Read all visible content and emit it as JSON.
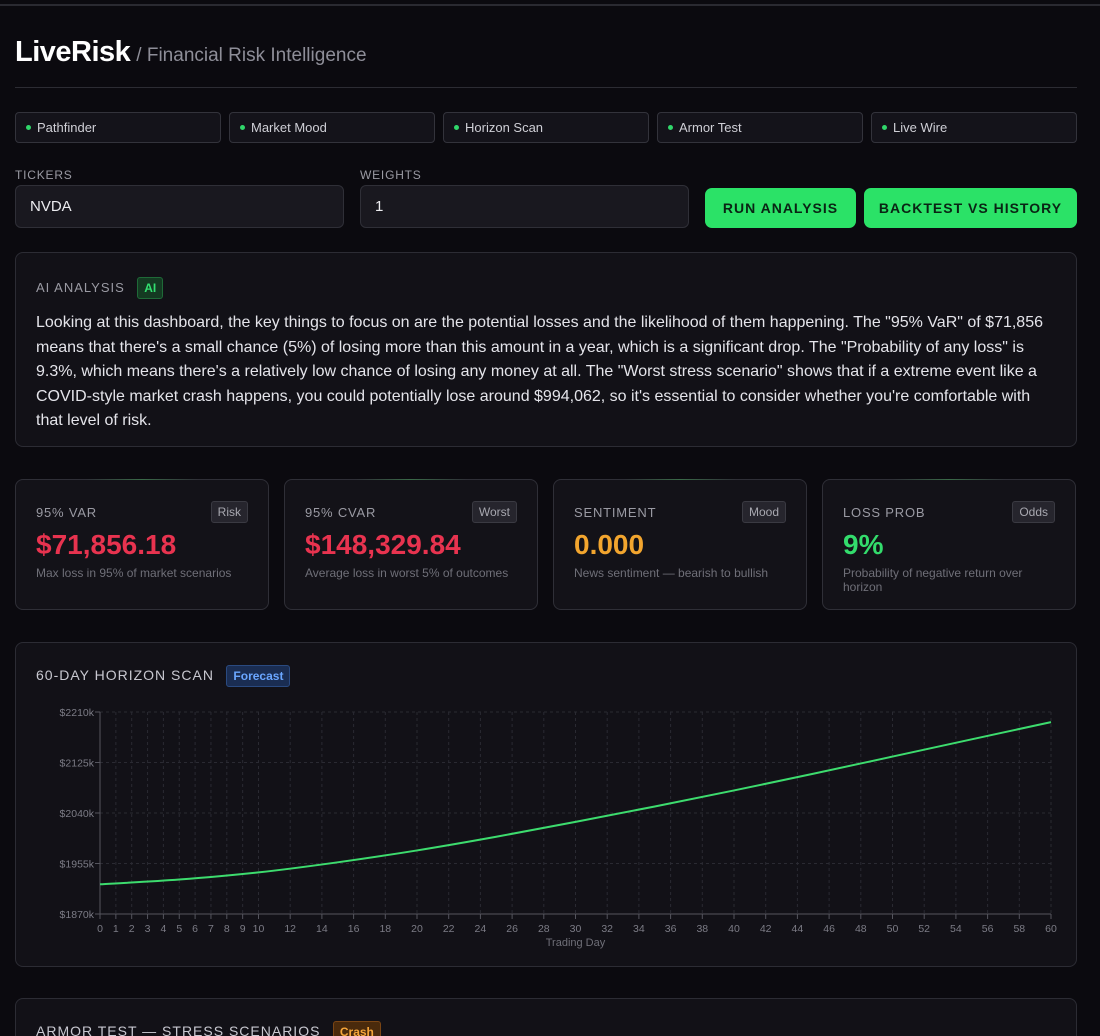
{
  "header": {
    "brand": "LiveRisk",
    "subtitle": "/ Financial Risk Intelligence"
  },
  "tabs": [
    {
      "label": "Pathfinder"
    },
    {
      "label": "Market Mood"
    },
    {
      "label": "Horizon Scan"
    },
    {
      "label": "Armor Test"
    },
    {
      "label": "Live Wire"
    }
  ],
  "form": {
    "tickers_label": "TICKERS",
    "tickers_value": "NVDA",
    "weights_label": "WEIGHTS",
    "weights_value": "1",
    "run_label": "RUN ANALYSIS",
    "backtest_label": "BACKTEST VS HISTORY"
  },
  "ai": {
    "title": "AI ANALYSIS",
    "badge": "AI",
    "text": "Looking at this dashboard, the key things to focus on are the potential losses and the likelihood of them happening. The \"95% VaR\" of $71,856 means that there's a small chance (5%) of losing more than this amount in a year, which is a significant drop. The \"Probability of any loss\" is 9.3%, which means there's a relatively low chance of losing any money at all. The \"Worst stress scenario\" shows that if a extreme event like a COVID-style market crash happens, you could potentially lose around $994,062, so it's essential to consider whether you're comfortable with that level of risk."
  },
  "cards": [
    {
      "label": "95% VAR",
      "tag": "Risk",
      "value": "$71,856.18",
      "desc": "Max loss in 95% of market scenarios",
      "color": "#e8334f"
    },
    {
      "label": "95% CVAR",
      "tag": "Worst",
      "value": "$148,329.84",
      "desc": "Average loss in worst 5% of outcomes",
      "color": "#e8334f"
    },
    {
      "label": "SENTIMENT",
      "tag": "Mood",
      "value": "0.000",
      "desc": "News sentiment — bearish to bullish",
      "color": "#f2a52e"
    },
    {
      "label": "LOSS PROB",
      "tag": "Odds",
      "value": "9%",
      "desc": "Probability of negative return over horizon",
      "color": "#33dc6c"
    }
  ],
  "horizon": {
    "title": "60-DAY HORIZON SCAN",
    "badge": "Forecast"
  },
  "chart_data": {
    "type": "line",
    "xlabel": "Trading Day",
    "ylabel": "",
    "x_ticks": [
      0,
      1,
      2,
      3,
      4,
      5,
      6,
      7,
      8,
      9,
      10,
      12,
      14,
      16,
      18,
      20,
      22,
      24,
      26,
      28,
      30,
      32,
      34,
      36,
      38,
      40,
      42,
      44,
      46,
      48,
      50,
      52,
      54,
      56,
      58,
      60
    ],
    "y_ticks": [
      "$1870k",
      "$1955k",
      "$2040k",
      "$2125k",
      "$2210k"
    ],
    "ylim": [
      1870,
      2210
    ],
    "xlim": [
      0,
      60
    ],
    "series": [
      {
        "color": "#3ddc6e",
        "x": [
          0,
          5,
          10,
          15,
          20,
          25,
          30,
          35,
          40,
          45,
          50,
          55,
          60
        ],
        "y": [
          1920,
          1928,
          1940,
          1957,
          1977,
          2000,
          2025,
          2051,
          2078,
          2106,
          2135,
          2164,
          2193
        ]
      }
    ],
    "grid": true
  },
  "stress": {
    "title": "ARMOR TEST — STRESS SCENARIOS",
    "badge": "Crash"
  }
}
